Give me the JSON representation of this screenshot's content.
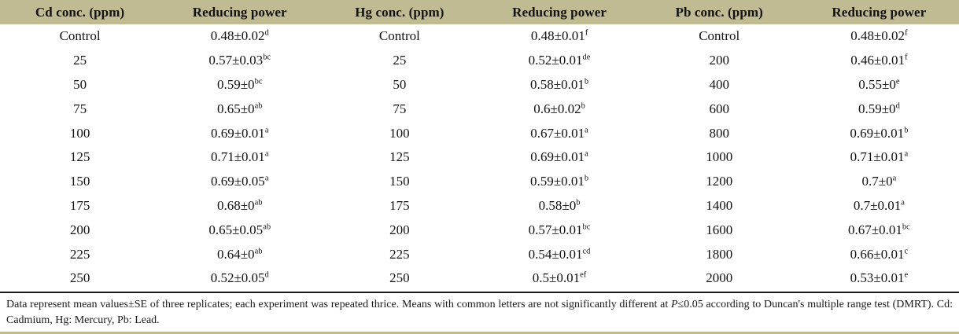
{
  "colors": {
    "header_bg": "#c1bb93",
    "rule_dark": "#1c1c1c",
    "text": "#121212"
  },
  "table": {
    "headers": [
      "Cd conc. (ppm)",
      "Reducing power",
      "Hg conc. (ppm)",
      "Reducing power",
      "Pb conc. (ppm)",
      "Reducing power"
    ],
    "rows": [
      [
        [
          "Control",
          ""
        ],
        [
          "0.48±0.02",
          "d"
        ],
        [
          "Control",
          ""
        ],
        [
          "0.48±0.01",
          "f"
        ],
        [
          "Control",
          ""
        ],
        [
          "0.48±0.02",
          "f"
        ]
      ],
      [
        [
          "25",
          ""
        ],
        [
          "0.57±0.03",
          "bc"
        ],
        [
          "25",
          ""
        ],
        [
          "0.52±0.01",
          "de"
        ],
        [
          "200",
          ""
        ],
        [
          "0.46±0.01",
          "f"
        ]
      ],
      [
        [
          "50",
          ""
        ],
        [
          "0.59±0",
          "bc"
        ],
        [
          "50",
          ""
        ],
        [
          "0.58±0.01",
          "b"
        ],
        [
          "400",
          ""
        ],
        [
          "0.55±0",
          "e"
        ]
      ],
      [
        [
          "75",
          ""
        ],
        [
          "0.65±0",
          "ab"
        ],
        [
          "75",
          ""
        ],
        [
          "0.6±0.02",
          "b"
        ],
        [
          "600",
          ""
        ],
        [
          "0.59±0",
          "d"
        ]
      ],
      [
        [
          "100",
          ""
        ],
        [
          "0.69±0.01",
          "a"
        ],
        [
          "100",
          ""
        ],
        [
          "0.67±0.01",
          "a"
        ],
        [
          "800",
          ""
        ],
        [
          "0.69±0.01",
          "b"
        ]
      ],
      [
        [
          "125",
          ""
        ],
        [
          "0.71±0.01",
          "a"
        ],
        [
          "125",
          ""
        ],
        [
          "0.69±0.01",
          "a"
        ],
        [
          "1000",
          ""
        ],
        [
          "0.71±0.01",
          "a"
        ]
      ],
      [
        [
          "150",
          ""
        ],
        [
          "0.69±0.05",
          "a"
        ],
        [
          "150",
          ""
        ],
        [
          "0.59±0.01",
          "b"
        ],
        [
          "1200",
          ""
        ],
        [
          "0.7±0",
          "a"
        ]
      ],
      [
        [
          "175",
          ""
        ],
        [
          "0.68±0",
          "ab"
        ],
        [
          "175",
          ""
        ],
        [
          "0.58±0",
          "b"
        ],
        [
          "1400",
          ""
        ],
        [
          "0.7±0.01",
          "a"
        ]
      ],
      [
        [
          "200",
          ""
        ],
        [
          "0.65±0.05",
          "ab"
        ],
        [
          "200",
          ""
        ],
        [
          "0.57±0.01",
          "bc"
        ],
        [
          "1600",
          ""
        ],
        [
          "0.67±0.01",
          "bc"
        ]
      ],
      [
        [
          "225",
          ""
        ],
        [
          "0.64±0",
          "ab"
        ],
        [
          "225",
          ""
        ],
        [
          "0.54±0.01",
          "cd"
        ],
        [
          "1800",
          ""
        ],
        [
          "0.66±0.01",
          "c"
        ]
      ],
      [
        [
          "250",
          ""
        ],
        [
          "0.52±0.05",
          "d"
        ],
        [
          "250",
          ""
        ],
        [
          "0.5±0.01",
          "ef"
        ],
        [
          "2000",
          ""
        ],
        [
          "0.53±0.01",
          "e"
        ]
      ]
    ]
  },
  "footnote": {
    "part1": "Data represent mean values±SE of three replicates; each experiment was repeated thrice. Means with common letters are not significantly different at ",
    "italic_p": "P",
    "part2": "≤0.05 according to Duncan's multiple range test (DMRT). Cd: Cadmium, Hg: Mercury, Pb: Lead."
  }
}
